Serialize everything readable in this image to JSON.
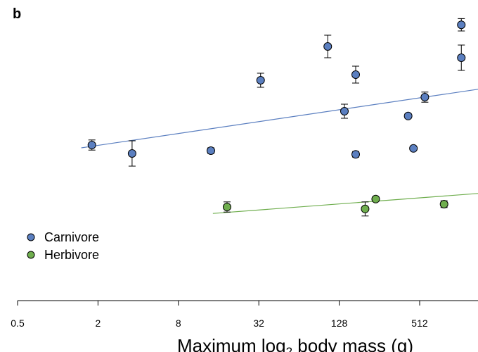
{
  "panel_label": "b",
  "chart_data": {
    "type": "scatter",
    "title": "",
    "xlabel_parts": {
      "pre": "Maximum log",
      "sub": "2",
      "post": " body mass (g)"
    },
    "ylabel": "",
    "x_scale": "log2",
    "xlim": [
      0.5,
      1400
    ],
    "ylim": [
      0,
      1
    ],
    "x_ticks": [
      {
        "value": 0.5,
        "label": "0.5"
      },
      {
        "value": 2,
        "label": "2"
      },
      {
        "value": 8,
        "label": "8"
      },
      {
        "value": 32,
        "label": "32"
      },
      {
        "value": 128,
        "label": "128"
      },
      {
        "value": 512,
        "label": "512"
      }
    ],
    "y_axis_visible": false,
    "grid": false,
    "legend": {
      "position": "bottom-left"
    },
    "series": [
      {
        "name": "Carnivore",
        "color": "#5b7fc0",
        "points": [
          {
            "x": 1.8,
            "y": 0.535,
            "err": 0.018
          },
          {
            "x": 3.6,
            "y": 0.505,
            "err": 0.045
          },
          {
            "x": 14,
            "y": 0.515,
            "err": 0.01
          },
          {
            "x": 33,
            "y": 0.765,
            "err": 0.025
          },
          {
            "x": 105,
            "y": 0.885,
            "err": 0.04
          },
          {
            "x": 140,
            "y": 0.655,
            "err": 0.025
          },
          {
            "x": 170,
            "y": 0.785,
            "err": 0.03
          },
          {
            "x": 170,
            "y": 0.502,
            "err": 0.01
          },
          {
            "x": 420,
            "y": 0.638,
            "err": 0.008
          },
          {
            "x": 460,
            "y": 0.523,
            "err": 0.006
          },
          {
            "x": 560,
            "y": 0.705,
            "err": 0.018
          },
          {
            "x": 1050,
            "y": 0.962,
            "err": 0.022
          },
          {
            "x": 1050,
            "y": 0.845,
            "err": 0.045
          }
        ],
        "fit": {
          "x": [
            1.5,
            1400
          ],
          "y": [
            0.525,
            0.733
          ]
        }
      },
      {
        "name": "Herbivore",
        "color": "#6fae4e",
        "points": [
          {
            "x": 18.5,
            "y": 0.315,
            "err": 0.018
          },
          {
            "x": 200,
            "y": 0.308,
            "err": 0.025
          },
          {
            "x": 240,
            "y": 0.343,
            "err": 0.008
          },
          {
            "x": 780,
            "y": 0.325,
            "err": 0.012
          }
        ],
        "fit": {
          "x": [
            14.5,
            1400
          ],
          "y": [
            0.292,
            0.363
          ]
        }
      }
    ]
  }
}
